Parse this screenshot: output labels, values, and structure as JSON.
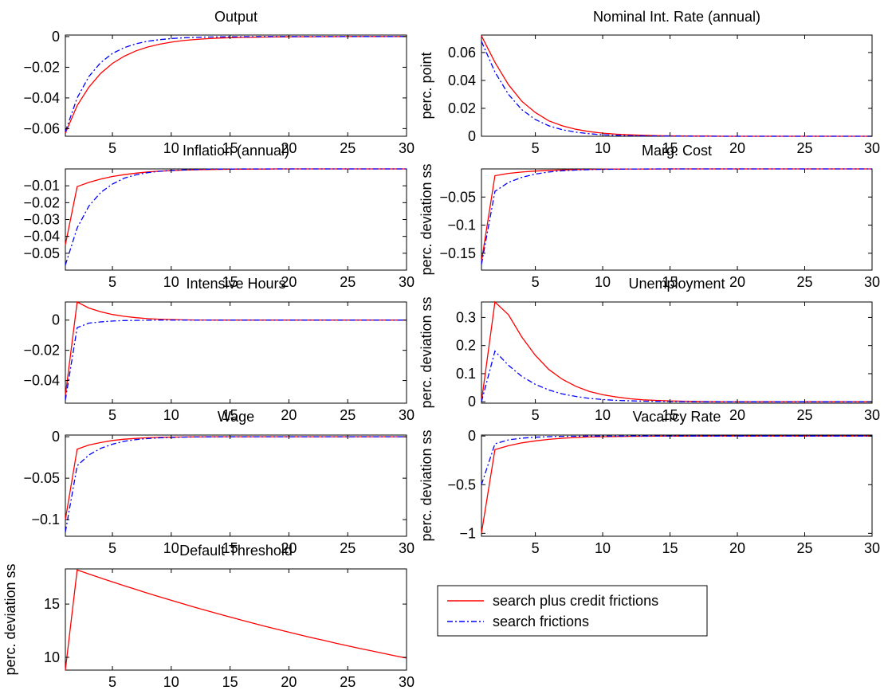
{
  "colors": {
    "series_red": "#ff0000",
    "series_blue": "#0000ff",
    "axes": "#000000",
    "background": "#ffffff"
  },
  "legend": {
    "entries": [
      {
        "label": "search plus credit frictions",
        "color": "#ff0000",
        "style": "solid"
      },
      {
        "label": "search frictions",
        "color": "#0000ff",
        "style": "dash-dot"
      }
    ]
  },
  "chart_data": [
    {
      "type": "line",
      "title": "Output",
      "ylabel": "",
      "xlim": [
        1,
        30
      ],
      "ylim": [
        -0.065,
        0.001
      ],
      "xticks": [
        5,
        10,
        15,
        20,
        25,
        30
      ],
      "yticks": [
        -0.06,
        -0.04,
        -0.02,
        0
      ],
      "ytick_labels": [
        "−0.06",
        "−0.04",
        "−0.02",
        "0"
      ],
      "x": [
        1,
        2,
        3,
        4,
        5,
        6,
        7,
        8,
        9,
        10,
        11,
        12,
        13,
        14,
        15,
        16,
        17,
        18,
        19,
        20,
        21,
        22,
        23,
        24,
        25,
        26,
        27,
        28,
        29,
        30
      ],
      "series": [
        {
          "name": "search plus credit frictions",
          "values": [
            -0.063,
            -0.045,
            -0.033,
            -0.024,
            -0.0175,
            -0.0128,
            -0.0093,
            -0.0068,
            -0.005,
            -0.0036,
            -0.0026,
            -0.0019,
            -0.0014,
            -0.001,
            -0.0007,
            -0.0005,
            -0.0004,
            -0.0003,
            -0.0002,
            -0.00015,
            -0.0001,
            -0.0001,
            -5e-05,
            -5e-05,
            0,
            0,
            0,
            0,
            0,
            0
          ]
        },
        {
          "name": "search frictions",
          "values": [
            -0.062,
            -0.04,
            -0.026,
            -0.017,
            -0.011,
            -0.0072,
            -0.0047,
            -0.003,
            -0.002,
            -0.0013,
            -0.0008,
            -0.0005,
            -0.0003,
            -0.0002,
            -0.0001,
            -0.0001,
            -5e-05,
            0,
            0,
            0,
            0,
            0,
            0,
            0,
            0,
            0,
            0,
            0,
            0,
            0
          ]
        }
      ]
    },
    {
      "type": "line",
      "title": "Nominal Int. Rate (annual)",
      "ylabel": "perc. point",
      "xlim": [
        1,
        30
      ],
      "ylim": [
        0,
        0.0725
      ],
      "xticks": [
        5,
        10,
        15,
        20,
        25,
        30
      ],
      "yticks": [
        0,
        0.02,
        0.04,
        0.06
      ],
      "ytick_labels": [
        "0",
        "0.02",
        "0.04",
        "0.06"
      ],
      "x": [
        1,
        2,
        3,
        4,
        5,
        6,
        7,
        8,
        9,
        10,
        11,
        12,
        13,
        14,
        15,
        16,
        17,
        18,
        19,
        20,
        21,
        22,
        23,
        24,
        25,
        26,
        27,
        28,
        29,
        30
      ],
      "series": [
        {
          "name": "search plus credit frictions",
          "values": [
            0.072,
            0.053,
            0.037,
            0.025,
            0.017,
            0.011,
            0.0075,
            0.005,
            0.0033,
            0.0022,
            0.0015,
            0.001,
            0.0007,
            0.0004,
            0.0003,
            0.0002,
            0.0001,
            0.0001,
            0,
            0,
            0,
            0,
            0,
            0,
            0,
            0,
            0,
            0,
            0,
            0
          ]
        },
        {
          "name": "search frictions",
          "values": [
            0.068,
            0.046,
            0.03,
            0.019,
            0.012,
            0.0075,
            0.0047,
            0.0029,
            0.0018,
            0.0011,
            0.0007,
            0.0004,
            0.0003,
            0.0002,
            0.0001,
            0.0001,
            0,
            0,
            0,
            0,
            0,
            0,
            0,
            0,
            0,
            0,
            0,
            0,
            0,
            0
          ]
        }
      ]
    },
    {
      "type": "line",
      "title": "Inflation (annual)",
      "ylabel": "",
      "xlim": [
        1,
        30
      ],
      "ylim": [
        -0.06,
        0.0
      ],
      "xticks": [
        5,
        10,
        15,
        20,
        25,
        30
      ],
      "yticks": [
        -0.05,
        -0.04,
        -0.03,
        -0.02,
        -0.01
      ],
      "ytick_labels": [
        "−0.05",
        "−0.04",
        "−0.03",
        "−0.02",
        "−0.01"
      ],
      "x": [
        1,
        2,
        3,
        4,
        5,
        6,
        7,
        8,
        9,
        10,
        11,
        12,
        13,
        14,
        15,
        16,
        17,
        18,
        19,
        20,
        21,
        22,
        23,
        24,
        25,
        26,
        27,
        28,
        29,
        30
      ],
      "series": [
        {
          "name": "search plus credit frictions",
          "values": [
            -0.045,
            -0.0105,
            -0.008,
            -0.006,
            -0.0045,
            -0.0034,
            -0.0025,
            -0.0018,
            -0.0013,
            -0.001,
            -0.0007,
            -0.0005,
            -0.0004,
            -0.0003,
            -0.0002,
            -0.00015,
            -0.0001,
            -0.0001,
            0,
            0,
            0,
            0,
            0,
            0,
            0,
            0,
            0,
            0,
            0,
            0
          ]
        },
        {
          "name": "search frictions",
          "values": [
            -0.057,
            -0.035,
            -0.022,
            -0.014,
            -0.009,
            -0.0055,
            -0.0035,
            -0.0022,
            -0.0014,
            -0.0009,
            -0.0006,
            -0.0004,
            -0.0002,
            -0.0001,
            -0.0001,
            0,
            0,
            0,
            0,
            0,
            0,
            0,
            0,
            0,
            0,
            0,
            0,
            0,
            0,
            0
          ]
        }
      ]
    },
    {
      "type": "line",
      "title": "Marg. Cost",
      "ylabel": "perc. deviation ss",
      "xlim": [
        1,
        30
      ],
      "ylim": [
        -0.18,
        0.0
      ],
      "xticks": [
        5,
        10,
        15,
        20,
        25,
        30
      ],
      "yticks": [
        -0.15,
        -0.1,
        -0.05
      ],
      "ytick_labels": [
        "−0.15",
        "−0.1",
        "−0.05"
      ],
      "x": [
        1,
        2,
        3,
        4,
        5,
        6,
        7,
        8,
        9,
        10,
        11,
        12,
        13,
        14,
        15,
        16,
        17,
        18,
        19,
        20,
        21,
        22,
        23,
        24,
        25,
        26,
        27,
        28,
        29,
        30
      ],
      "series": [
        {
          "name": "search plus credit frictions",
          "values": [
            -0.165,
            -0.012,
            -0.008,
            -0.0055,
            -0.0038,
            -0.0026,
            -0.0018,
            -0.0012,
            -0.0008,
            -0.0005,
            -0.0003,
            -0.0002,
            -0.0001,
            -0.0001,
            0,
            0,
            0,
            0,
            0,
            0,
            0,
            0,
            0,
            0,
            0,
            0,
            0,
            0,
            0,
            0
          ]
        },
        {
          "name": "search frictions",
          "values": [
            -0.17,
            -0.04,
            -0.024,
            -0.015,
            -0.009,
            -0.0055,
            -0.0033,
            -0.002,
            -0.0012,
            -0.0007,
            -0.0004,
            -0.0002,
            -0.0001,
            0,
            0,
            0,
            0,
            0,
            0,
            0,
            0,
            0,
            0,
            0,
            0,
            0,
            0,
            0,
            0,
            0
          ]
        }
      ]
    },
    {
      "type": "line",
      "title": "Intensive Hours",
      "ylabel": "",
      "xlim": [
        1,
        30
      ],
      "ylim": [
        -0.055,
        0.012
      ],
      "xticks": [
        5,
        10,
        15,
        20,
        25,
        30
      ],
      "yticks": [
        -0.04,
        -0.02,
        0
      ],
      "ytick_labels": [
        "−0.04",
        "−0.02",
        "0"
      ],
      "x": [
        1,
        2,
        3,
        4,
        5,
        6,
        7,
        8,
        9,
        10,
        11,
        12,
        13,
        14,
        15,
        16,
        17,
        18,
        19,
        20,
        21,
        22,
        23,
        24,
        25,
        26,
        27,
        28,
        29,
        30
      ],
      "series": [
        {
          "name": "search plus credit frictions",
          "values": [
            -0.05,
            0.012,
            0.008,
            0.0055,
            0.0037,
            0.0025,
            0.0016,
            0.001,
            0.0006,
            0.0004,
            0.0002,
            0.0001,
            0.0001,
            0,
            0,
            0,
            0,
            0,
            0,
            0,
            0,
            0,
            0,
            0,
            0,
            0,
            0,
            0,
            0,
            0
          ]
        },
        {
          "name": "search frictions",
          "values": [
            -0.053,
            -0.005,
            -0.002,
            -0.0012,
            -0.0006,
            -0.0003,
            -0.0002,
            -0.0001,
            0,
            0,
            0,
            0,
            0,
            0,
            0,
            0,
            0,
            0,
            0,
            0,
            0,
            0,
            0,
            0,
            0,
            0,
            0,
            0,
            0,
            0
          ]
        }
      ]
    },
    {
      "type": "line",
      "title": "Unemployment",
      "ylabel": "perc. deviation ss",
      "xlim": [
        1,
        30
      ],
      "ylim": [
        -0.005,
        0.355
      ],
      "xticks": [
        5,
        10,
        15,
        20,
        25,
        30
      ],
      "yticks": [
        0,
        0.1,
        0.2,
        0.3
      ],
      "ytick_labels": [
        "0",
        "0.1",
        "0.2",
        "0.3"
      ],
      "x": [
        1,
        2,
        3,
        4,
        5,
        6,
        7,
        8,
        9,
        10,
        11,
        12,
        13,
        14,
        15,
        16,
        17,
        18,
        19,
        20,
        21,
        22,
        23,
        24,
        25,
        26,
        27,
        28,
        29,
        30
      ],
      "series": [
        {
          "name": "search plus credit frictions",
          "values": [
            0,
            0.355,
            0.31,
            0.23,
            0.165,
            0.115,
            0.08,
            0.055,
            0.037,
            0.025,
            0.017,
            0.011,
            0.007,
            0.005,
            0.003,
            0.002,
            0.0013,
            0.0008,
            0.0005,
            0.0003,
            0.0002,
            0.0001,
            0.0001,
            0,
            0,
            0,
            0,
            0,
            0,
            0
          ]
        },
        {
          "name": "search frictions",
          "values": [
            0,
            0.18,
            0.13,
            0.09,
            0.062,
            0.042,
            0.028,
            0.019,
            0.012,
            0.008,
            0.005,
            0.0035,
            0.0022,
            0.0015,
            0.001,
            0.0006,
            0.0004,
            0.0002,
            0.0001,
            0.0001,
            0,
            0,
            0,
            0,
            0,
            0,
            0,
            0,
            0,
            0
          ]
        }
      ]
    },
    {
      "type": "line",
      "title": "Wage",
      "ylabel": "",
      "xlim": [
        1,
        30
      ],
      "ylim": [
        -0.12,
        0.002
      ],
      "xticks": [
        5,
        10,
        15,
        20,
        25,
        30
      ],
      "yticks": [
        -0.1,
        -0.05,
        0
      ],
      "ytick_labels": [
        "−0.1",
        "−0.05",
        "0"
      ],
      "x": [
        1,
        2,
        3,
        4,
        5,
        6,
        7,
        8,
        9,
        10,
        11,
        12,
        13,
        14,
        15,
        16,
        17,
        18,
        19,
        20,
        21,
        22,
        23,
        24,
        25,
        26,
        27,
        28,
        29,
        30
      ],
      "series": [
        {
          "name": "search plus credit frictions",
          "values": [
            -0.1,
            -0.015,
            -0.01,
            -0.007,
            -0.0045,
            -0.003,
            -0.002,
            -0.0013,
            -0.0008,
            -0.0005,
            -0.0003,
            -0.0002,
            -0.0001,
            0,
            0,
            0,
            0,
            0,
            0,
            0,
            0,
            0,
            0,
            0,
            0,
            0,
            0,
            0,
            0,
            0
          ]
        },
        {
          "name": "search frictions",
          "values": [
            -0.115,
            -0.035,
            -0.022,
            -0.014,
            -0.009,
            -0.0055,
            -0.0035,
            -0.0022,
            -0.0014,
            -0.0009,
            -0.0005,
            -0.0003,
            -0.0002,
            -0.0001,
            0,
            0,
            0,
            0,
            0,
            0,
            0,
            0,
            0,
            0,
            0,
            0,
            0,
            0,
            0,
            0
          ]
        }
      ]
    },
    {
      "type": "line",
      "title": "Vacancy Rate",
      "ylabel": "perc. deviation ss",
      "xlim": [
        1,
        30
      ],
      "ylim": [
        -1.03,
        0.01
      ],
      "xticks": [
        5,
        10,
        15,
        20,
        25,
        30
      ],
      "yticks": [
        -1,
        -0.5,
        0
      ],
      "ytick_labels": [
        "−1",
        "−0.5",
        "0"
      ],
      "x": [
        1,
        2,
        3,
        4,
        5,
        6,
        7,
        8,
        9,
        10,
        11,
        12,
        13,
        14,
        15,
        16,
        17,
        18,
        19,
        20,
        21,
        22,
        23,
        24,
        25,
        26,
        27,
        28,
        29,
        30
      ],
      "series": [
        {
          "name": "search plus credit frictions",
          "values": [
            -1.0,
            -0.14,
            -0.1,
            -0.07,
            -0.05,
            -0.034,
            -0.023,
            -0.015,
            -0.01,
            -0.007,
            -0.0045,
            -0.003,
            -0.002,
            -0.0013,
            -0.0008,
            -0.0005,
            -0.0003,
            -0.0002,
            -0.0001,
            0,
            0,
            0,
            0,
            0,
            0,
            0,
            0,
            0,
            0,
            0
          ]
        },
        {
          "name": "search frictions",
          "values": [
            -0.5,
            -0.08,
            -0.04,
            -0.022,
            -0.012,
            -0.0065,
            -0.0035,
            -0.002,
            -0.001,
            -0.0005,
            -0.0003,
            -0.0001,
            0,
            0,
            0,
            0,
            0,
            0,
            0,
            0,
            0,
            0,
            0,
            0,
            0,
            0,
            0,
            0,
            0,
            0
          ]
        }
      ]
    },
    {
      "type": "line",
      "title": "Default Threshold",
      "ylabel": "perc. deviation ss",
      "xlim": [
        1,
        30
      ],
      "ylim": [
        8.8,
        18.3
      ],
      "xticks": [
        5,
        10,
        15,
        20,
        25,
        30
      ],
      "yticks": [
        10,
        15
      ],
      "ytick_labels": [
        "10",
        "15"
      ],
      "x": [
        1,
        2,
        3,
        4,
        5,
        6,
        7,
        8,
        9,
        10,
        11,
        12,
        13,
        14,
        15,
        16,
        17,
        18,
        19,
        20,
        21,
        22,
        23,
        24,
        25,
        26,
        27,
        28,
        29,
        30
      ],
      "series": [
        {
          "name": "search plus credit frictions",
          "values": [
            8.8,
            18.2,
            17.82,
            17.45,
            17.08,
            16.72,
            16.37,
            16.02,
            15.68,
            15.35,
            15.02,
            14.7,
            14.39,
            14.08,
            13.78,
            13.48,
            13.19,
            12.91,
            12.63,
            12.36,
            12.09,
            11.83,
            11.58,
            11.33,
            11.08,
            10.84,
            10.61,
            10.38,
            10.15,
            9.93
          ]
        }
      ]
    }
  ]
}
